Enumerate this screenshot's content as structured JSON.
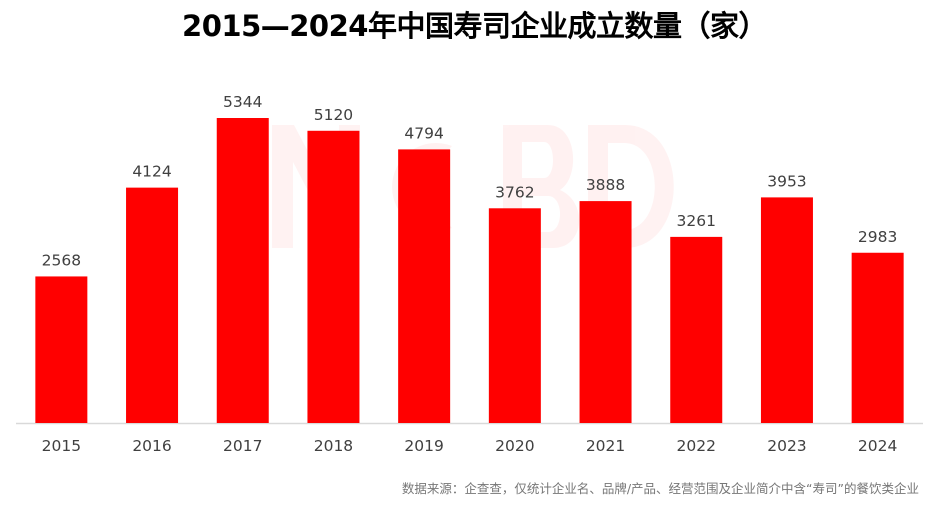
{
  "chart_data": {
    "type": "bar",
    "title": "2015—2024年中国寿司企业成立数量（家）",
    "categories": [
      "2015",
      "2016",
      "2017",
      "2018",
      "2019",
      "2020",
      "2021",
      "2022",
      "2023",
      "2024"
    ],
    "values": [
      2568,
      4124,
      5344,
      5120,
      4794,
      3762,
      3888,
      3261,
      3953,
      2983
    ],
    "xlabel": "",
    "ylabel": "",
    "ylim": [
      0,
      5344
    ],
    "grid": false,
    "legend": "none",
    "bar_color": "#ff0000",
    "axis_color": "#d9d9d9",
    "source": "数据来源：企查查，仅统计企业名、品牌/产品、经营范围及企业简介中含“寿司”的餐饮类企业"
  }
}
